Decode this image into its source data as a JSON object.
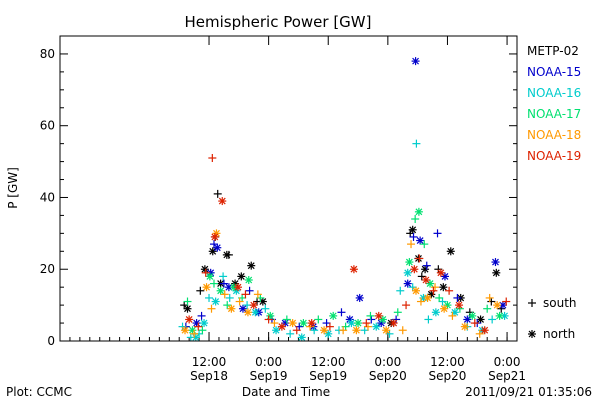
{
  "chart_data": {
    "type": "scatter",
    "title": "Hemispheric Power [GW]",
    "ylabel": "P [GW]",
    "xlabel": "Date and Time",
    "footer_left": "Plot: CCMC",
    "footer_right": "2011/09/21 01:35:06",
    "xlim": [
      "2011-09-17T06:00",
      "2011-09-21T02:00"
    ],
    "ylim": [
      0,
      85
    ],
    "y_ticks": [
      0,
      20,
      40,
      60,
      80
    ],
    "x_ticks": [
      {
        "t": "2011-09-18T12:00",
        "time": "12:00",
        "date": "Sep18"
      },
      {
        "t": "2011-09-19T00:00",
        "time": "0:00",
        "date": "Sep19"
      },
      {
        "t": "2011-09-19T12:00",
        "time": "12:00",
        "date": "Sep19"
      },
      {
        "t": "2011-09-20T00:00",
        "time": "0:00",
        "date": "Sep20"
      },
      {
        "t": "2011-09-20T12:00",
        "time": "12:00",
        "date": "Sep20"
      },
      {
        "t": "2011-09-21T00:00",
        "time": "0:00",
        "date": "Sep21"
      }
    ],
    "marker_legend": [
      {
        "symbol": "+",
        "label": "south"
      },
      {
        "symbol": "*",
        "label": "north"
      }
    ],
    "series": [
      {
        "name": "METP-02",
        "color": "#000000",
        "points": [
          [
            "2011-09-18T07:00",
            10,
            "+"
          ],
          [
            "2011-09-18T07:40",
            9,
            "*"
          ],
          [
            "2011-09-18T10:15",
            14,
            "+"
          ],
          [
            "2011-09-18T11:10",
            20,
            "*"
          ],
          [
            "2011-09-18T12:45",
            25,
            "*"
          ],
          [
            "2011-09-18T13:15",
            29,
            "+"
          ],
          [
            "2011-09-18T13:45",
            41,
            "+"
          ],
          [
            "2011-09-18T14:20",
            16,
            "*"
          ],
          [
            "2011-09-18T15:35",
            24,
            "*"
          ],
          [
            "2011-09-18T16:00",
            24,
            "+"
          ],
          [
            "2011-09-18T17:15",
            16,
            "*"
          ],
          [
            "2011-09-18T18:30",
            18,
            "*"
          ],
          [
            "2011-09-18T20:30",
            21,
            "*"
          ],
          [
            "2011-09-18T21:40",
            11,
            "+"
          ],
          [
            "2011-09-18T22:50",
            11,
            "*"
          ],
          [
            "2011-09-20T00:40",
            5,
            "*"
          ],
          [
            "2011-09-20T04:30",
            30,
            "+"
          ],
          [
            "2011-09-20T05:00",
            31,
            "*"
          ],
          [
            "2011-09-20T06:10",
            23,
            "*"
          ],
          [
            "2011-09-20T06:50",
            18,
            "+"
          ],
          [
            "2011-09-20T07:30",
            20,
            "*"
          ],
          [
            "2011-09-20T08:45",
            13,
            "*"
          ],
          [
            "2011-09-20T10:10",
            20,
            "+"
          ],
          [
            "2011-09-20T11:10",
            15,
            "*"
          ],
          [
            "2011-09-20T12:40",
            25,
            "*"
          ],
          [
            "2011-09-20T14:40",
            12,
            "*"
          ],
          [
            "2011-09-20T16:30",
            8,
            "+"
          ],
          [
            "2011-09-20T18:40",
            6,
            "*"
          ],
          [
            "2011-09-20T20:50",
            11,
            "+"
          ],
          [
            "2011-09-20T21:50",
            19,
            "*"
          ],
          [
            "2011-09-20T22:50",
            9,
            "+"
          ]
        ]
      },
      {
        "name": "NOAA-15",
        "color": "#0000cc",
        "points": [
          [
            "2011-09-18T07:20",
            4,
            "+"
          ],
          [
            "2011-09-18T09:30",
            5,
            "*"
          ],
          [
            "2011-09-18T10:30",
            7,
            "+"
          ],
          [
            "2011-09-18T12:20",
            19,
            "*"
          ],
          [
            "2011-09-18T13:00",
            27,
            "+"
          ],
          [
            "2011-09-18T13:40",
            26,
            "*"
          ],
          [
            "2011-09-18T15:00",
            16,
            "+"
          ],
          [
            "2011-09-18T16:00",
            15,
            "*"
          ],
          [
            "2011-09-18T18:50",
            9,
            "*"
          ],
          [
            "2011-09-18T20:10",
            14,
            "+"
          ],
          [
            "2011-09-18T22:00",
            8,
            "*"
          ],
          [
            "2011-09-19T00:40",
            6,
            "+"
          ],
          [
            "2011-09-19T03:20",
            5,
            "*"
          ],
          [
            "2011-09-19T06:10",
            4,
            "+"
          ],
          [
            "2011-09-19T09:00",
            4,
            "*"
          ],
          [
            "2011-09-19T11:40",
            5,
            "+"
          ],
          [
            "2011-09-19T14:40",
            8,
            "+"
          ],
          [
            "2011-09-19T16:20",
            6,
            "*"
          ],
          [
            "2011-09-19T18:20",
            12,
            "*"
          ],
          [
            "2011-09-19T20:40",
            6,
            "+"
          ],
          [
            "2011-09-19T22:40",
            5,
            "*"
          ],
          [
            "2011-09-20T01:40",
            6,
            "+"
          ],
          [
            "2011-09-20T04:00",
            16,
            "*"
          ],
          [
            "2011-09-20T05:10",
            29,
            "+"
          ],
          [
            "2011-09-20T05:35",
            78,
            "*"
          ],
          [
            "2011-09-20T06:30",
            28,
            "*"
          ],
          [
            "2011-09-20T07:50",
            21,
            "+"
          ],
          [
            "2011-09-20T10:00",
            30,
            "+"
          ],
          [
            "2011-09-20T11:30",
            18,
            "*"
          ],
          [
            "2011-09-20T14:00",
            12,
            "+"
          ],
          [
            "2011-09-20T16:00",
            6,
            "*"
          ],
          [
            "2011-09-20T18:00",
            5,
            "+"
          ],
          [
            "2011-09-20T21:40",
            22,
            "*"
          ],
          [
            "2011-09-20T23:10",
            10,
            "*"
          ]
        ]
      },
      {
        "name": "NOAA-16",
        "color": "#00cccc",
        "points": [
          [
            "2011-09-18T06:40",
            4,
            "+"
          ],
          [
            "2011-09-18T08:20",
            1,
            "+"
          ],
          [
            "2011-09-18T09:20",
            1,
            "*"
          ],
          [
            "2011-09-18T10:00",
            2,
            "+"
          ],
          [
            "2011-09-18T11:00",
            5,
            "*"
          ],
          [
            "2011-09-18T12:00",
            12,
            "+"
          ],
          [
            "2011-09-18T13:20",
            11,
            "*"
          ],
          [
            "2011-09-18T14:50",
            18,
            "+"
          ],
          [
            "2011-09-18T16:10",
            12,
            "+"
          ],
          [
            "2011-09-18T17:30",
            14,
            "*"
          ],
          [
            "2011-09-18T19:40",
            10,
            "+"
          ],
          [
            "2011-09-18T21:20",
            8,
            "*"
          ],
          [
            "2011-09-18T23:20",
            9,
            "+"
          ],
          [
            "2011-09-19T01:30",
            3,
            "*"
          ],
          [
            "2011-09-19T04:20",
            2,
            "+"
          ],
          [
            "2011-09-19T06:40",
            1,
            "*"
          ],
          [
            "2011-09-19T09:10",
            3,
            "+"
          ],
          [
            "2011-09-19T12:00",
            2,
            "*"
          ],
          [
            "2011-09-19T14:10",
            3,
            "+"
          ],
          [
            "2011-09-19T16:40",
            5,
            "*"
          ],
          [
            "2011-09-19T19:20",
            3,
            "+"
          ],
          [
            "2011-09-19T21:40",
            4,
            "*"
          ],
          [
            "2011-09-20T00:20",
            2,
            "+"
          ],
          [
            "2011-09-20T02:30",
            14,
            "+"
          ],
          [
            "2011-09-20T04:00",
            19,
            "*"
          ],
          [
            "2011-09-20T05:00",
            15,
            "+"
          ],
          [
            "2011-09-20T05:45",
            55,
            "+"
          ],
          [
            "2011-09-20T07:10",
            12,
            "*"
          ],
          [
            "2011-09-20T08:10",
            6,
            "+"
          ],
          [
            "2011-09-20T09:40",
            8,
            "*"
          ],
          [
            "2011-09-20T11:00",
            11,
            "+"
          ],
          [
            "2011-09-20T13:30",
            8,
            "*"
          ],
          [
            "2011-09-20T16:00",
            4,
            "+"
          ],
          [
            "2011-09-20T19:00",
            3,
            "*"
          ],
          [
            "2011-09-20T21:00",
            6,
            "+"
          ],
          [
            "2011-09-20T23:30",
            7,
            "*"
          ]
        ]
      },
      {
        "name": "NOAA-17",
        "color": "#00e070",
        "points": [
          [
            "2011-09-18T07:40",
            11,
            "+"
          ],
          [
            "2011-09-18T08:40",
            3,
            "*"
          ],
          [
            "2011-09-18T10:40",
            3,
            "+"
          ],
          [
            "2011-09-18T12:10",
            18,
            "*"
          ],
          [
            "2011-09-18T13:00",
            16,
            "+"
          ],
          [
            "2011-09-18T14:20",
            14,
            "*"
          ],
          [
            "2011-09-18T15:40",
            10,
            "+"
          ],
          [
            "2011-09-18T17:00",
            15,
            "*"
          ],
          [
            "2011-09-18T18:40",
            12,
            "+"
          ],
          [
            "2011-09-18T20:00",
            17,
            "*"
          ],
          [
            "2011-09-18T22:20",
            12,
            "+"
          ],
          [
            "2011-09-19T00:20",
            7,
            "*"
          ],
          [
            "2011-09-19T03:40",
            6,
            "+"
          ],
          [
            "2011-09-19T07:00",
            5,
            "*"
          ],
          [
            "2011-09-19T10:00",
            6,
            "+"
          ],
          [
            "2011-09-19T13:00",
            7,
            "*"
          ],
          [
            "2011-09-19T15:30",
            4,
            "+"
          ],
          [
            "2011-09-19T18:00",
            5,
            "*"
          ],
          [
            "2011-09-19T20:30",
            7,
            "+"
          ],
          [
            "2011-09-19T23:00",
            6,
            "*"
          ],
          [
            "2011-09-20T02:00",
            8,
            "+"
          ],
          [
            "2011-09-20T04:20",
            22,
            "*"
          ],
          [
            "2011-09-20T05:30",
            34,
            "+"
          ],
          [
            "2011-09-20T06:15",
            36,
            "*"
          ],
          [
            "2011-09-20T07:20",
            27,
            "+"
          ],
          [
            "2011-09-20T08:30",
            16,
            "*"
          ],
          [
            "2011-09-20T10:20",
            12,
            "+"
          ],
          [
            "2011-09-20T12:00",
            10,
            "*"
          ],
          [
            "2011-09-20T14:30",
            9,
            "+"
          ],
          [
            "2011-09-20T17:00",
            7,
            "*"
          ],
          [
            "2011-09-20T20:00",
            9,
            "+"
          ],
          [
            "2011-09-20T22:30",
            7,
            "*"
          ]
        ]
      },
      {
        "name": "NOAA-18",
        "color": "#ff9900",
        "points": [
          [
            "2011-09-18T07:10",
            3,
            "*"
          ],
          [
            "2011-09-18T09:00",
            2,
            "+"
          ],
          [
            "2011-09-18T11:30",
            15,
            "*"
          ],
          [
            "2011-09-18T12:30",
            9,
            "+"
          ],
          [
            "2011-09-18T13:30",
            30,
            "*"
          ],
          [
            "2011-09-18T15:10",
            13,
            "+"
          ],
          [
            "2011-09-18T16:30",
            9,
            "*"
          ],
          [
            "2011-09-18T18:10",
            11,
            "+"
          ],
          [
            "2011-09-18T19:50",
            8,
            "*"
          ],
          [
            "2011-09-18T21:50",
            13,
            "+"
          ],
          [
            "2011-09-19T01:10",
            5,
            "+"
          ],
          [
            "2011-09-19T04:50",
            5,
            "*"
          ],
          [
            "2011-09-19T08:20",
            4,
            "+"
          ],
          [
            "2011-09-19T11:10",
            3,
            "*"
          ],
          [
            "2011-09-19T15:00",
            3,
            "+"
          ],
          [
            "2011-09-19T17:40",
            3,
            "*"
          ],
          [
            "2011-09-19T20:00",
            4,
            "+"
          ],
          [
            "2011-09-19T23:40",
            3,
            "*"
          ],
          [
            "2011-09-20T03:00",
            3,
            "+"
          ],
          [
            "2011-09-20T04:40",
            27,
            "+"
          ],
          [
            "2011-09-20T05:40",
            14,
            "*"
          ],
          [
            "2011-09-20T06:40",
            11,
            "+"
          ],
          [
            "2011-09-20T08:00",
            12,
            "*"
          ],
          [
            "2011-09-20T09:30",
            15,
            "+"
          ],
          [
            "2011-09-20T11:20",
            9,
            "*"
          ],
          [
            "2011-09-20T13:00",
            7,
            "+"
          ],
          [
            "2011-09-20T15:30",
            4,
            "*"
          ],
          [
            "2011-09-20T18:30",
            2,
            "+"
          ],
          [
            "2011-09-20T20:30",
            12,
            "+"
          ],
          [
            "2011-09-20T22:00",
            10,
            "*"
          ]
        ]
      },
      {
        "name": "NOAA-19",
        "color": "#dd2200",
        "points": [
          [
            "2011-09-18T08:00",
            6,
            "*"
          ],
          [
            "2011-09-18T09:50",
            4,
            "+"
          ],
          [
            "2011-09-18T11:20",
            19,
            "+"
          ],
          [
            "2011-09-18T12:40",
            51,
            "+"
          ],
          [
            "2011-09-18T13:10",
            29,
            "*"
          ],
          [
            "2011-09-18T14:40",
            39,
            "*"
          ],
          [
            "2011-09-18T17:50",
            15,
            "*"
          ],
          [
            "2011-09-18T19:20",
            13,
            "+"
          ],
          [
            "2011-09-18T21:00",
            10,
            "*"
          ],
          [
            "2011-09-19T00:00",
            6,
            "+"
          ],
          [
            "2011-09-19T02:40",
            4,
            "*"
          ],
          [
            "2011-09-19T05:40",
            3,
            "+"
          ],
          [
            "2011-09-19T08:40",
            5,
            "*"
          ],
          [
            "2011-09-19T12:20",
            4,
            "+"
          ],
          [
            "2011-09-19T17:10",
            20,
            "*"
          ],
          [
            "2011-09-19T19:40",
            5,
            "+"
          ],
          [
            "2011-09-19T22:10",
            7,
            "*"
          ],
          [
            "2011-09-20T01:10",
            5,
            "*"
          ],
          [
            "2011-09-20T03:40",
            10,
            "+"
          ],
          [
            "2011-09-20T05:20",
            20,
            "*"
          ],
          [
            "2011-09-20T06:20",
            23,
            "+"
          ],
          [
            "2011-09-20T07:40",
            17,
            "*"
          ],
          [
            "2011-09-20T09:10",
            14,
            "+"
          ],
          [
            "2011-09-20T10:40",
            19,
            "*"
          ],
          [
            "2011-09-20T12:20",
            14,
            "+"
          ],
          [
            "2011-09-20T14:20",
            10,
            "*"
          ],
          [
            "2011-09-20T17:30",
            5,
            "+"
          ],
          [
            "2011-09-20T19:30",
            3,
            "*"
          ],
          [
            "2011-09-20T23:50",
            11,
            "+"
          ]
        ]
      }
    ]
  }
}
